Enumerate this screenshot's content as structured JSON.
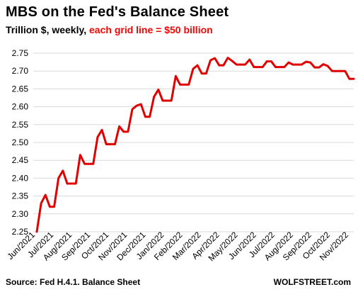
{
  "title": "MBS on the Fed's Balance Sheet",
  "subtitle_prefix": "Trillion $, weekly, ",
  "subtitle_highlight": "each grid line = $50 billion",
  "source": "Source: Fed H.4.1. Balance Sheet",
  "brand": "WOLFSTREET.com",
  "colors": {
    "line": "#e00000",
    "highlight": "#ff0000",
    "grid": "#d9d9d9",
    "text": "#000000"
  },
  "chart_data": {
    "type": "line",
    "title": "MBS on the Fed's Balance Sheet",
    "subtitle": "Trillion $, weekly, each grid line = $50 billion",
    "ylim": [
      2.25,
      2.75
    ],
    "yticks": [
      "2.25",
      "2.30",
      "2.35",
      "2.40",
      "2.45",
      "2.50",
      "2.55",
      "2.60",
      "2.65",
      "2.70",
      "2.75"
    ],
    "xlabels": [
      "Jun/2021",
      "Jul/2021",
      "Aug/2021",
      "Sep/2021",
      "Oct/2021",
      "Nov/2021",
      "Dec/2021",
      "Jan/2022",
      "Feb/2022",
      "Mar/2022",
      "Apr/2022",
      "May/2022",
      "Jun/2022",
      "Jul/2022",
      "Aug/2022",
      "Sep/2022",
      "Oct/2022",
      "Nov/2022"
    ],
    "grid": true,
    "series": [
      {
        "values": [
          2.25,
          2.33,
          2.353,
          2.32,
          2.32,
          2.4,
          2.421,
          2.385,
          2.385,
          2.385,
          2.465,
          2.44,
          2.44,
          2.44,
          2.515,
          2.535,
          2.495,
          2.495,
          2.495,
          2.545,
          2.53,
          2.53,
          2.593,
          2.603,
          2.607,
          2.572,
          2.572,
          2.628,
          2.648,
          2.617,
          2.617,
          2.617,
          2.686,
          2.662,
          2.662,
          2.662,
          2.706,
          2.716,
          2.693,
          2.693,
          2.73,
          2.736,
          2.716,
          2.716,
          2.737,
          2.728,
          2.718,
          2.718,
          2.718,
          2.732,
          2.711,
          2.711,
          2.711,
          2.727,
          2.727,
          2.711,
          2.711,
          2.711,
          2.724,
          2.718,
          2.718,
          2.718,
          2.726,
          2.724,
          2.71,
          2.71,
          2.719,
          2.714,
          2.7,
          2.7,
          2.7,
          2.7,
          2.678,
          2.678
        ]
      }
    ]
  }
}
